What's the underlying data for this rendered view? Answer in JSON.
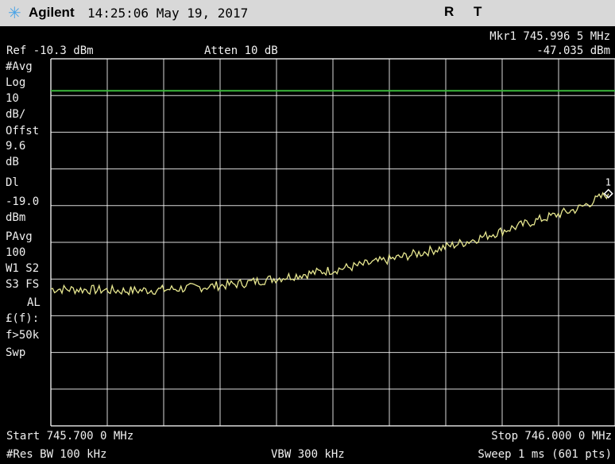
{
  "header": {
    "brand": "Agilent",
    "datetime": "14:25:06  May 19, 2017",
    "flag_r": "R",
    "flag_t": "T"
  },
  "marker": {
    "label": "Mkr1  745.996 5 MHz",
    "value": "-47.035 dBm",
    "number": "1"
  },
  "ref_level": "Ref -10.3 dBm",
  "attenuation": "Atten 10 dB",
  "side_labels": [
    "#Avg",
    "Log",
    "10",
    "dB/",
    "Offst",
    "9.6",
    "dB",
    "Dl",
    "-19.0",
    "dBm",
    "PAvg",
    "100",
    "W1  S2",
    "S3  FS",
    "AL",
    "£(f):",
    "f>50k",
    "Swp"
  ],
  "footer": {
    "start": "Start 745.700 0 MHz",
    "stop": "Stop 746.000 0 MHz",
    "rbw": "#Res BW 100 kHz",
    "vbw": "VBW 300 kHz",
    "sweep": "Sweep 1 ms (601 pts)"
  },
  "colors": {
    "trace": "#e8e890",
    "display_line": "#3cb83c",
    "grid": "#ffffff",
    "titlebar": "#d8d8d8"
  },
  "chart_data": {
    "type": "line",
    "x_start_mhz": 745.7,
    "x_stop_mhz": 746.0,
    "ref_level_dbm": -10.3,
    "scale_db_per_div": 10,
    "display_line_dbm": -19.0,
    "ylim": [
      -110.3,
      -10.3
    ],
    "marker": {
      "x_mhz": 745.9965,
      "y_dbm": -47.035
    },
    "series": [
      {
        "x": [
          745.7,
          745.72,
          745.74,
          745.76,
          745.78,
          745.8,
          745.82,
          745.84,
          745.86,
          745.88,
          745.9,
          745.92,
          745.94,
          745.96,
          745.98,
          745.9965
        ],
        "y": [
          -73.0,
          -73.2,
          -73.5,
          -73.2,
          -72.5,
          -71.6,
          -70.1,
          -68.6,
          -67.0,
          -65.0,
          -62.8,
          -60.3,
          -57.2,
          -54.1,
          -51.2,
          -47.035
        ]
      }
    ]
  }
}
